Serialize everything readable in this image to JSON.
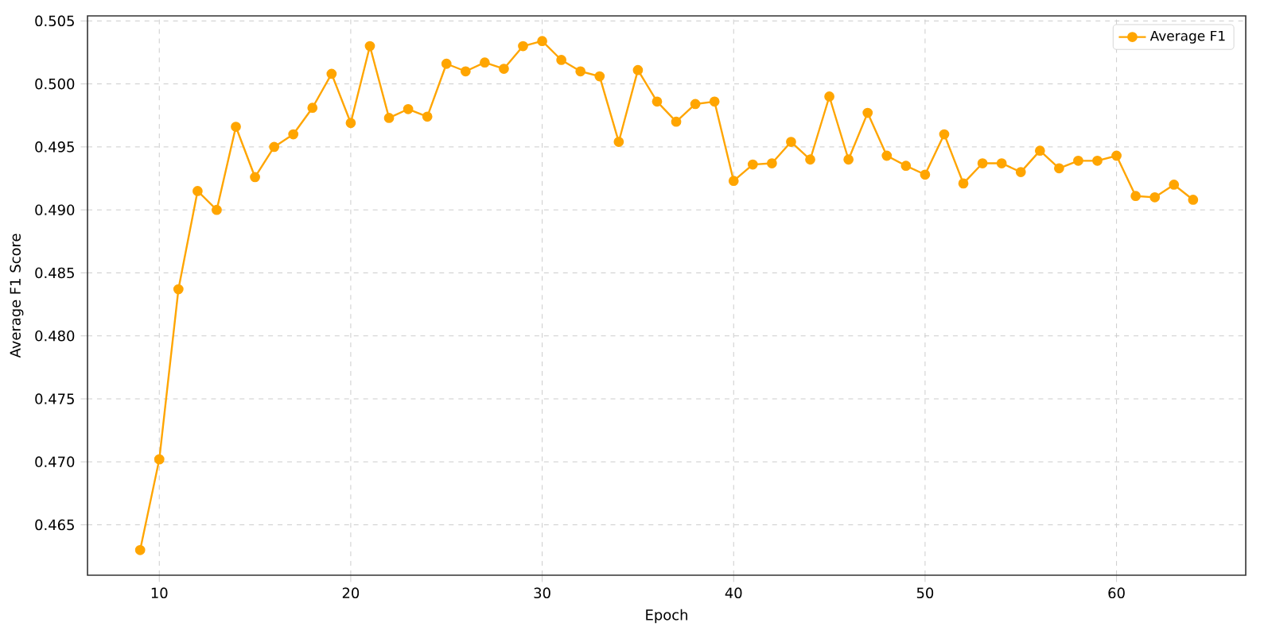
{
  "chart_data": {
    "type": "line",
    "xlabel": "Epoch",
    "ylabel": "Average F1 Score",
    "x": [
      9,
      10,
      11,
      12,
      13,
      14,
      15,
      16,
      17,
      18,
      19,
      20,
      21,
      22,
      23,
      24,
      25,
      26,
      27,
      28,
      29,
      30,
      31,
      32,
      33,
      34,
      35,
      36,
      37,
      38,
      39,
      40,
      41,
      42,
      43,
      44,
      45,
      46,
      47,
      48,
      49,
      50,
      51,
      52,
      53,
      54,
      55,
      56,
      57,
      58,
      59,
      60,
      61,
      62,
      63,
      64
    ],
    "series": [
      {
        "name": "Average F1",
        "color": "#ffa500",
        "values": [
          0.463,
          0.4702,
          0.4837,
          0.4915,
          0.49,
          0.4966,
          0.4926,
          0.495,
          0.496,
          0.4981,
          0.5008,
          0.4969,
          0.503,
          0.4973,
          0.498,
          0.4974,
          0.5016,
          0.501,
          0.5017,
          0.5012,
          0.503,
          0.5034,
          0.5019,
          0.501,
          0.5006,
          0.4954,
          0.5011,
          0.4986,
          0.497,
          0.4984,
          0.4986,
          0.4923,
          0.4936,
          0.4937,
          0.4954,
          0.494,
          0.499,
          0.494,
          0.4977,
          0.4943,
          0.4935,
          0.4928,
          0.496,
          0.4921,
          0.4937,
          0.4937,
          0.493,
          0.4947,
          0.4933,
          0.4939,
          0.4939,
          0.4943,
          0.4911,
          0.491,
          0.492,
          0.4908
        ]
      }
    ],
    "xlim": [
      6.25,
      66.75
    ],
    "ylim": [
      0.461,
      0.5054
    ],
    "xticks": [
      10,
      20,
      30,
      40,
      50,
      60
    ],
    "yticks": [
      {
        "value": 0.465,
        "label": "0.465"
      },
      {
        "value": 0.47,
        "label": "0.470"
      },
      {
        "value": 0.475,
        "label": "0.475"
      },
      {
        "value": 0.48,
        "label": "0.480"
      },
      {
        "value": 0.485,
        "label": "0.485"
      },
      {
        "value": 0.49,
        "label": "0.490"
      },
      {
        "value": 0.495,
        "label": "0.495"
      },
      {
        "value": 0.5,
        "label": "0.500"
      },
      {
        "value": 0.505,
        "label": "0.505"
      }
    ],
    "grid": true,
    "legend": "top right",
    "marker": "circle",
    "line_style": "solid"
  }
}
